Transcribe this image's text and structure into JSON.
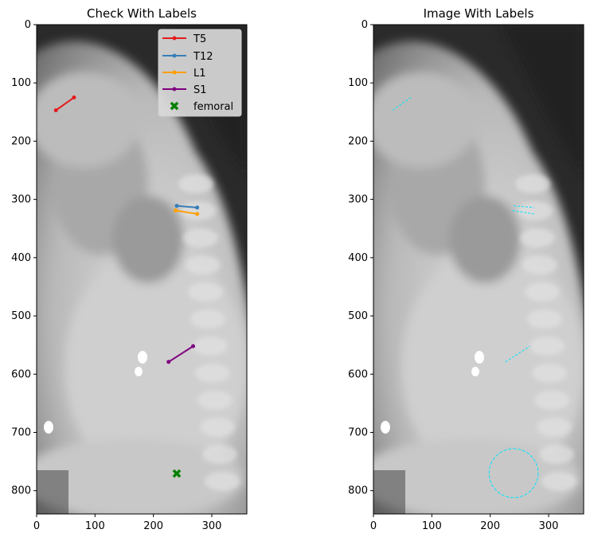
{
  "chart_data": [
    {
      "type": "scatter",
      "title": "Check With Labels",
      "xlabel": "",
      "ylabel": "",
      "xlim": [
        0,
        360
      ],
      "ylim": [
        840,
        0
      ],
      "x_ticks": [
        0,
        100,
        200,
        300
      ],
      "y_ticks": [
        0,
        100,
        200,
        300,
        400,
        500,
        600,
        700,
        800
      ],
      "grid": false,
      "legend_position": "top-right",
      "series": [
        {
          "name": "T5",
          "color": "#e41a1c",
          "marker": "dot",
          "x": [
            33,
            64
          ],
          "y": [
            147,
            125
          ]
        },
        {
          "name": "T12",
          "color": "#377eb8",
          "marker": "dot",
          "x": [
            240,
            275
          ],
          "y": [
            311,
            314
          ]
        },
        {
          "name": "L1",
          "color": "#ff9f00",
          "marker": "dot",
          "x": [
            238,
            275
          ],
          "y": [
            319,
            325
          ]
        },
        {
          "name": "S1",
          "color": "#800080",
          "marker": "dot",
          "x": [
            226,
            268
          ],
          "y": [
            579,
            552
          ]
        },
        {
          "name": "femoral",
          "color": "#008000",
          "marker": "x",
          "x": [
            240
          ],
          "y": [
            770
          ]
        }
      ]
    },
    {
      "type": "scatter",
      "title": "Image With Labels",
      "xlabel": "",
      "ylabel": "",
      "xlim": [
        0,
        360
      ],
      "ylim": [
        840,
        0
      ],
      "x_ticks": [
        0,
        100,
        200,
        300
      ],
      "y_ticks": [
        0,
        100,
        200,
        300,
        400,
        500,
        600,
        700,
        800
      ],
      "grid": false,
      "annotation_color": "#00e5ff",
      "circle": {
        "cx": 240,
        "cy": 770,
        "r": 42
      }
    }
  ]
}
